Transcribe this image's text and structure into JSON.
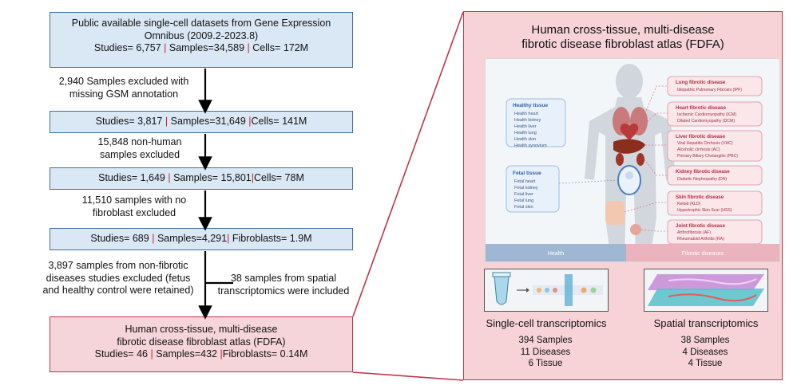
{
  "flow": {
    "box1": {
      "line1": "Public available single-cell datasets from Gene Expression",
      "line2": "Omnibus (2009.2-2023.8)",
      "studies": "Studies= 6,757",
      "samples": "Samples=34,589",
      "cells": "Cells= 172M"
    },
    "excl1": {
      "line1": "2,940 Samples excluded with",
      "line2": "missing GSM annotation"
    },
    "box2": {
      "studies": "Studies= 3,817",
      "samples": "Samples=31,649",
      "cells": "Cells= 141M"
    },
    "excl2": {
      "line1": "15,848 non-human",
      "line2": "samples excluded"
    },
    "box3": {
      "studies": "Studies= 1,649",
      "samples": "Samples= 15,801",
      "cells": "Cells= 78M"
    },
    "excl3": {
      "line1": "11,510  samples with no",
      "line2": "fibroblast excluded"
    },
    "box4": {
      "studies": "Studies= 689",
      "samples": "Samples=4,291",
      "fibro": "Fibroblasts= 1.9M"
    },
    "excl4": {
      "line1": "3,897 samples from non-fibrotic",
      "line2": "diseases studies excluded (fetus",
      "line3": "and healthy  control were retained)"
    },
    "incl": {
      "line1": "38 samples from spatial",
      "line2": "transcriptomics were included"
    },
    "box5": {
      "line1": "Human cross-tissue, multi-disease",
      "line2": "fibrotic disease fibroblast atlas (FDFA)",
      "studies": "Studies= 46",
      "samples": "Samples=432",
      "fibro": "Fibroblasts= 0.14M"
    },
    "sep": "|"
  },
  "panel": {
    "title1": "Human cross-tissue, multi-disease",
    "title2": "fibrotic disease fibroblast atlas (FDFA)",
    "healthy": {
      "title": "Healthy tissue",
      "items": [
        "Health heart",
        "Health kidney",
        "Health liver",
        "Health lung",
        "Health skin",
        "Health synovium"
      ]
    },
    "fetal": {
      "title": "Fetal tissue",
      "items": [
        "Fetal heart",
        "Fetal kidney",
        "Fetal liver",
        "Fetal lung",
        "Fetal skin"
      ]
    },
    "diseases": [
      {
        "title": "Lung fibrotic disease",
        "items": [
          "Idiopathic Pulmonary Fibrosis (IPF)"
        ]
      },
      {
        "title": "Heart fibrotic disease",
        "items": [
          "Ischemic Cardiomyopathy (ICM)",
          "Dilated Cardiomyopathy (DCM)"
        ]
      },
      {
        "title": "Liver fibrotic disease",
        "items": [
          "Viral Hepatitis Cirrhosis (VHC)",
          "Alcoholic cirrhosis (AC)",
          "Primary Biliary Cholangitis (PBC)"
        ]
      },
      {
        "title": "Kidney fibrotic disease",
        "items": [
          "Diabetic Nephropathy (DN)"
        ]
      },
      {
        "title": "Skin fibrotic disease",
        "items": [
          "Keloid (KLD)",
          "Hypertrophic Skin Scar (HSS)"
        ]
      },
      {
        "title": "Joint fibrotic disease",
        "items": [
          "Arthrofibrosis (AF)",
          "Rheumatoid Arthritis (RA)"
        ]
      }
    ],
    "bar_health": "Health",
    "bar_fibrotic": "Fibrotic diseases",
    "sc": {
      "title": "Single-cell transcriptomics",
      "samples": "394 Samples",
      "diseases": "11 Diseases",
      "tissue": "6 Tissue"
    },
    "st": {
      "title": "Spatial transcriptomics",
      "samples": "38 Samples",
      "diseases": "4 Diseases",
      "tissue": "4 Tissue"
    }
  },
  "colors": {
    "blue_box": "#dae8f6",
    "pink_box": "#f6d5da",
    "accent_red": "#c0334a",
    "separator": "#d0202a"
  }
}
